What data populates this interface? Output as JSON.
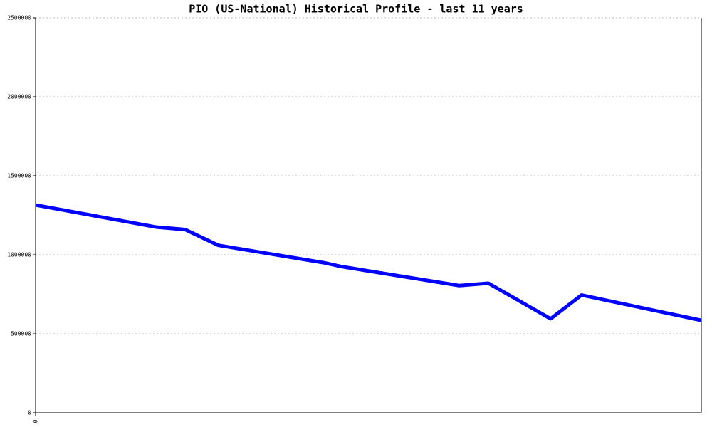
{
  "chart_data": {
    "type": "line",
    "title": "PIO (US-National) Historical Profile - last 11 years",
    "x": [
      0,
      2.0,
      2.47,
      3.02,
      4.76,
      5.06,
      7.0,
      7.48,
      8.51,
      9.02,
      11
    ],
    "series": [
      {
        "color": "#0000ff",
        "values": [
          1315000,
          1175000,
          1160000,
          1060000,
          950000,
          925000,
          805000,
          820000,
          595000,
          745000,
          585000
        ]
      }
    ],
    "xlim": [
      0,
      11
    ],
    "xticks": [
      0
    ],
    "ylim": [
      0,
      2500000
    ],
    "yticks": [
      0,
      500000,
      1000000,
      1500000,
      2000000,
      2500000
    ],
    "grid": true
  }
}
